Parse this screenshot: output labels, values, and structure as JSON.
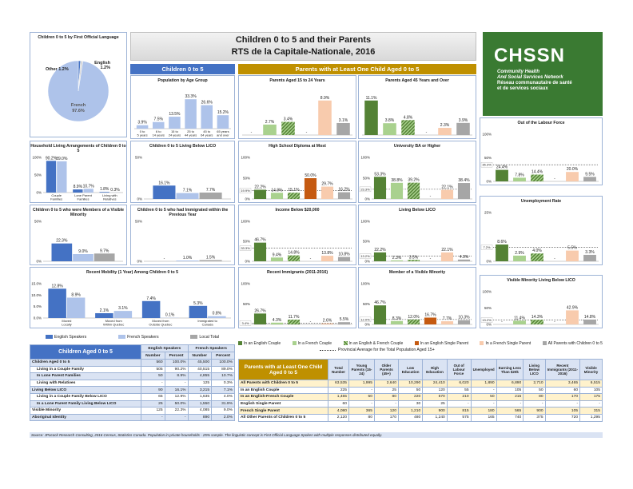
{
  "title_line1": "Children 0 to 5 and their Parents",
  "title_line2": "RTS de la Capitale-Nationale, 2016",
  "logo": {
    "brand": "CHSSN",
    "sub1": "Community Health",
    "sub2": "And Social Services Network",
    "sub3": "Réseau communautaire de santé",
    "sub4": "et de services sociaux"
  },
  "section_left": "Children 0 to 5",
  "section_right": "Parents with at Least One Child Aged 0 to 5",
  "colors": {
    "blue_dark": "#4472c4",
    "blue_light": "#aec3ea",
    "gray": "#a6a6a6",
    "green_dark": "#548235",
    "green_light": "#a9d18e",
    "orange": "#c55a11",
    "orange_light": "#f8cbad",
    "navy": "#2f5597",
    "header_blue": "#4472c4",
    "header_gold": "#bf9000"
  },
  "avg_label": "Provincial Average for the Total Population Aged 15+",
  "source": "Source: JPocock Research Consulting, 2016 Census, Statistics Canada. Population in private households - 25% sample. The linguistic concept is First Official Language Spoken with multiple responses distributed equally.",
  "legend_left": [
    "English Speakers",
    "French Speakers",
    "Local Total"
  ],
  "legend_right": [
    "In an English Couple",
    "In a French Couple",
    "In an English & French Couple",
    "In an English Single Parent",
    "In a French Single Parent",
    "All Parents with Children 0 to 5"
  ],
  "chart_data": [
    {
      "id": "fols",
      "type": "pie",
      "title": "Children 0 to 5 by First Official Language",
      "labels": [
        "English",
        "Other",
        "French"
      ],
      "values": [
        1.2,
        1.2,
        97.6
      ],
      "label_text": [
        "English 1.2%",
        "Other 1.2%",
        "French 97.6%"
      ]
    },
    {
      "id": "age",
      "type": "bar",
      "title": "Population by Age Group",
      "categories": [
        "0 to 5 years",
        "6 to 14 years",
        "15 to 24 years",
        "25 to 44 years",
        "45 to 64 years",
        "65 years and over"
      ],
      "values": [
        3.9,
        7.5,
        13.5,
        33.3,
        26.6,
        15.2
      ],
      "labels": [
        "3.9%",
        "7.5%",
        "13.5%",
        "33.3%",
        "26.6%",
        "15.2%"
      ]
    },
    {
      "id": "hh",
      "type": "bar",
      "title": "Household Living Arrangements of Children 0 to 5",
      "categories": [
        "Couple Families",
        "Lone Parent Families",
        "Living with Relatives"
      ],
      "series": [
        {
          "name": "English Speakers",
          "values": [
            90.2,
            8.9,
            1.8
          ],
          "labels": [
            "90.2%",
            "8.9%",
            "1.8%"
          ]
        },
        {
          "name": "French Speakers",
          "values": [
            89.0,
            10.7,
            0.3
          ],
          "labels": [
            "89.0%",
            "10.7%",
            "0.3%"
          ]
        }
      ],
      "ylim": [
        0,
        100
      ],
      "yticks": [
        "0%",
        "50%",
        "100%"
      ]
    },
    {
      "id": "lico",
      "type": "bar",
      "title": "Children 0 to 5 Living Below LICO",
      "series": [
        {
          "name": "English Speakers",
          "values": [
            16.1
          ],
          "labels": [
            "16.1%"
          ]
        },
        {
          "name": "French Speakers",
          "values": [
            7.1
          ],
          "labels": [
            "7.1%"
          ]
        },
        {
          "name": "Local Total",
          "values": [
            7.7
          ],
          "labels": [
            "7.7%"
          ]
        }
      ],
      "ylim": [
        0,
        50
      ],
      "yticks": [
        "0%",
        "50%"
      ]
    },
    {
      "id": "vm",
      "type": "bar",
      "title": "Children 0 to 5 who were Members of a Visible Minority",
      "series": [
        {
          "name": "English Speakers",
          "values": [
            22.3
          ],
          "labels": [
            "22.3%"
          ]
        },
        {
          "name": "French Speakers",
          "values": [
            9.0
          ],
          "labels": [
            "9.0%"
          ]
        },
        {
          "name": "Local Total",
          "values": [
            9.7
          ],
          "labels": [
            "9.7%"
          ]
        }
      ],
      "ylim": [
        0,
        50
      ],
      "yticks": [
        "0%",
        "50%"
      ]
    },
    {
      "id": "imm",
      "type": "bar",
      "title": "Children 0 to 5 who had Immigrated within the Previous Year",
      "series": [
        {
          "name": "English Speakers",
          "values": [
            0
          ],
          "labels": [
            "-"
          ]
        },
        {
          "name": "French Speakers",
          "values": [
            1.0
          ],
          "labels": [
            "1.0%"
          ]
        },
        {
          "name": "Local Total",
          "values": [
            1.5
          ],
          "labels": [
            "1.5%"
          ]
        }
      ],
      "ylim": [
        0,
        50
      ],
      "yticks": [
        "0%",
        "50%"
      ]
    },
    {
      "id": "mob",
      "type": "bar",
      "title": "Recent Mobility (1 Year) Among Children 0 to 5",
      "categories": [
        "Moved Locally",
        "Moved from Within Quebec",
        "Moved from Outside Quebec",
        "Immigrated to Canada"
      ],
      "series": [
        {
          "name": "English Speakers",
          "values": [
            12.8,
            2.1,
            7.4,
            5.3
          ],
          "labels": [
            "12.8%",
            "2.1%",
            "7.4%",
            "5.3%"
          ]
        },
        {
          "name": "French Speakers",
          "values": [
            8.9,
            3.1,
            0.1,
            0.8
          ],
          "labels": [
            "8.9%",
            "3.1%",
            "0.1%",
            "0.8%"
          ]
        }
      ],
      "ylim": [
        0,
        15
      ],
      "yticks": [
        "0.0%",
        "5.0%",
        "10.0%",
        "15.0%"
      ]
    },
    {
      "id": "p1524",
      "type": "bar",
      "title": "Parents Aged 15 to 24 Years",
      "values": [
        0,
        2.7,
        3.4,
        0,
        8.9,
        3.1
      ],
      "labels": [
        "-",
        "2.7%",
        "3.4%",
        "-",
        "8.9%",
        "3.1%"
      ]
    },
    {
      "id": "p45",
      "type": "bar",
      "title": "Parents Aged 45 Years and Over",
      "values": [
        11.1,
        3.8,
        4.8,
        0,
        2.3,
        3.9
      ],
      "labels": [
        "11.1%",
        "3.8%",
        "4.8%",
        "-",
        "2.3%",
        "3.9%"
      ]
    },
    {
      "id": "hs",
      "type": "bar",
      "title": "High School Diploma at Most",
      "values": [
        22.2,
        14.9,
        15.1,
        50.0,
        29.7,
        16.2
      ],
      "labels": [
        "22.2%",
        "14.9%",
        "15.1%",
        "50.0%",
        "29.7%",
        "16.2%"
      ],
      "avg": 19.9,
      "avg_label": "19.9%",
      "ylim": [
        0,
        100
      ],
      "yticks": [
        "0%",
        "50%",
        "100%"
      ]
    },
    {
      "id": "uni",
      "type": "bar",
      "title": "University BA or Higher",
      "values": [
        53.3,
        38.8,
        39.2,
        0,
        22.1,
        38.4
      ],
      "labels": [
        "53.3%",
        "38.8%",
        "39.2%",
        "-",
        "22.1%",
        "38.4%"
      ],
      "avg": 23.3,
      "avg_label": "23.3%",
      "ylim": [
        0,
        100
      ],
      "yticks": [
        "0%",
        "50%",
        "100%"
      ]
    },
    {
      "id": "inc",
      "type": "bar",
      "title": "Income Below $20,000",
      "values": [
        46.7,
        9.4,
        14.8,
        0,
        13.8,
        10.8
      ],
      "labels": [
        "46.7%",
        "9.4%",
        "14.8%",
        "-",
        "13.8%",
        "10.8%"
      ],
      "avg": 33.3,
      "avg_label": "33.3%",
      "ylim": [
        0,
        100
      ],
      "yticks": [
        "0%",
        "50%",
        "100%"
      ]
    },
    {
      "id": "plico",
      "type": "bar",
      "title": "Living Below LICO",
      "values": [
        22.2,
        2.3,
        3.5,
        0,
        22.1,
        4.3
      ],
      "labels": [
        "22.2%",
        "2.3%",
        "3.5%",
        "-",
        "22.1%",
        "4.3%"
      ],
      "avg": 13.2,
      "avg_label": "13.2%",
      "ylim": [
        0,
        100
      ],
      "yticks": [
        "0%",
        "50%",
        "100%"
      ]
    },
    {
      "id": "rimm",
      "type": "bar",
      "title": "Recent Immigrants (2011-2016)",
      "values": [
        26.7,
        4.3,
        11.7,
        0,
        2.6,
        5.5
      ],
      "labels": [
        "26.7%",
        "4.3%",
        "11.7%",
        "-",
        "2.6%",
        "5.5%"
      ],
      "avg": 3.4,
      "avg_label": "3.4%",
      "ylim": [
        0,
        100
      ],
      "yticks": [
        "0%",
        "50%",
        "100%"
      ]
    },
    {
      "id": "pvm",
      "type": "bar",
      "title": "Member of a Visible Minority",
      "values": [
        46.7,
        8.3,
        12.0,
        16.7,
        7.7,
        10.3
      ],
      "labels": [
        "46.7%",
        "8.3%",
        "12.0%",
        "16.7%",
        "7.7%",
        "10.3%"
      ],
      "avg": 12.0,
      "avg_label": "12.0%",
      "ylim": [
        0,
        100
      ],
      "yticks": [
        "0%",
        "50%",
        "100%"
      ]
    },
    {
      "id": "olf",
      "type": "bar",
      "title": "Out of the Labour Force",
      "values": [
        24.4,
        7.8,
        14.4,
        0,
        20.0,
        9.5
      ],
      "labels": [
        "24.4%",
        "7.8%",
        "14.4%",
        "-",
        "20.0%",
        "9.5%"
      ],
      "avg": 35.3,
      "avg_label": "35.3%",
      "ylim": [
        0,
        100
      ],
      "yticks": [
        "0%",
        "50%",
        "100%"
      ]
    },
    {
      "id": "unemp",
      "type": "bar",
      "title": "Unemployment Rate",
      "values": [
        8.6,
        2.9,
        4.0,
        0,
        5.5,
        3.3
      ],
      "labels": [
        "8.6%",
        "2.9%",
        "4.0%",
        "-",
        "5.5%",
        "3.3%"
      ],
      "avg": 7.2,
      "avg_label": "7.2%",
      "ylim": [
        0,
        25
      ],
      "yticks": [
        "0%",
        "25%"
      ]
    },
    {
      "id": "vmlico",
      "type": "bar",
      "title": "Visible Minority Living Below LICO",
      "values": [
        0,
        11.4,
        14.3,
        0,
        42.9,
        14.8
      ],
      "labels": [
        "-",
        "11.4%",
        "14.3%",
        "-",
        "42.9%",
        "14.8%"
      ],
      "avg": 13.2,
      "avg_label": "13.2%",
      "ylim": [
        0,
        100
      ],
      "yticks": [
        "0%",
        "50%",
        "100%"
      ]
    }
  ],
  "table_left": {
    "title": "Children Aged 0 to 5",
    "groups": [
      "English Speakers",
      "French Speakers"
    ],
    "cols": [
      "Number",
      "Percent",
      "Number",
      "Percent"
    ],
    "rows": [
      [
        "Children Aged 0 to 5",
        "560",
        "100.0%",
        "45,500",
        "100.0%"
      ],
      [
        "Living in a Couple Family",
        "505",
        "90.2%",
        "40,515",
        "89.0%"
      ],
      [
        "In Lone Parent Families",
        "50",
        "8.9%",
        "4,855",
        "10.7%"
      ],
      [
        "Living with Relatives",
        "-",
        "-",
        "125",
        "0.3%"
      ],
      [
        "Living Below LICO",
        "90",
        "16.1%",
        "3,215",
        "7.1%"
      ],
      [
        "Living in a Couple Family Below LICO",
        "65",
        "12.9%",
        "1,635",
        "4.0%"
      ],
      [
        "In a Lone Parent Family Living Below LICO",
        "25",
        "50.0%",
        "1,550",
        "31.9%"
      ],
      [
        "Visible Minority",
        "125",
        "22.3%",
        "4,085",
        "9.0%"
      ],
      [
        "Aboriginal Identity",
        "-",
        "-",
        "890",
        "2.0%"
      ]
    ]
  },
  "table_right": {
    "title": "Parents with at Least One Child Aged 0 to 5",
    "cols": [
      "Total Number",
      "Young Parents (15-24)",
      "Older Parents (45+)",
      "Low Education",
      "High Education",
      "Out of Labour Force",
      "Unemployed",
      "Earning Less Than $20k",
      "Living Below LICO",
      "Recent Immigrants (2011-2016)",
      "Visible Minority"
    ],
    "rows": [
      [
        "All Parents with Children 0 to 5",
        "63,535",
        "1,995",
        "2,640",
        "10,290",
        "24,410",
        "6,020",
        "1,890",
        "6,890",
        "2,710",
        "3,465",
        "6,515"
      ],
      [
        "In an English Couple",
        "225",
        "-",
        "25",
        "50",
        "120",
        "55",
        "-",
        "105",
        "50",
        "60",
        "105"
      ],
      [
        "In an English-French Couple",
        "1,455",
        "50",
        "80",
        "220",
        "570",
        "210",
        "50",
        "215",
        "80",
        "170",
        "175"
      ],
      [
        "English Single Parent",
        "60",
        "-",
        "-",
        "30",
        "25",
        "-",
        "-",
        "-",
        "-",
        "-",
        "-"
      ],
      [
        "French Single Parent",
        "4,080",
        "365",
        "120",
        "1,210",
        "900",
        "815",
        "180",
        "565",
        "900",
        "105",
        "315"
      ],
      [
        "All Other Parents of Children 0 to 5",
        "2,120",
        "80",
        "170",
        "480",
        "1,240",
        "575",
        "165",
        "740",
        "375",
        "720",
        "1,295"
      ]
    ]
  }
}
